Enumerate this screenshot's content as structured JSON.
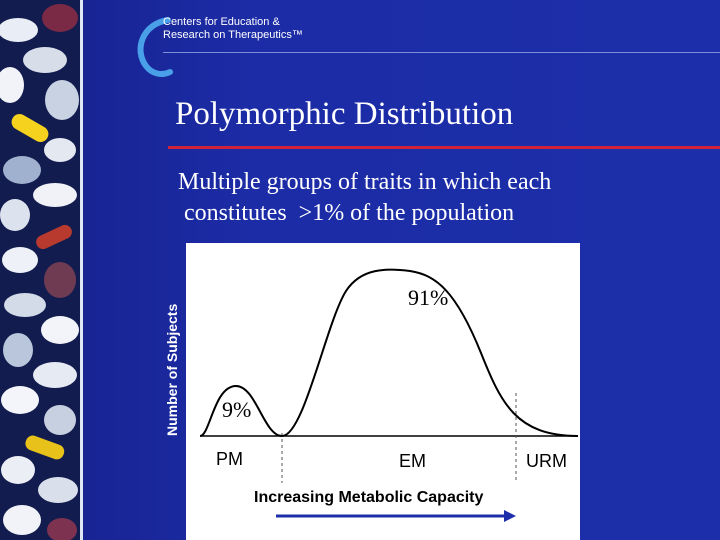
{
  "header": {
    "org_line1": "Centers for Education &",
    "org_line2": "Research on Therapeutics™"
  },
  "slide": {
    "title": "Polymorphic Distribution",
    "subtitle": "Multiple groups of traits in which each\n constitutes  >1% of the population"
  },
  "diagram": {
    "y_axis_label": "Number of Subjects",
    "x_axis_label": "Increasing Metabolic Capacity",
    "groups": [
      {
        "label": "PM",
        "peak_label": "9%",
        "percent": 9
      },
      {
        "label": "EM",
        "peak_label": "91%",
        "percent": 91
      },
      {
        "label": "URM",
        "peak_label": "",
        "percent": 0
      }
    ]
  },
  "colors": {
    "background": "#1d2eaa",
    "title_rule": "#d0223a",
    "arrow": "#1d2eaa"
  }
}
